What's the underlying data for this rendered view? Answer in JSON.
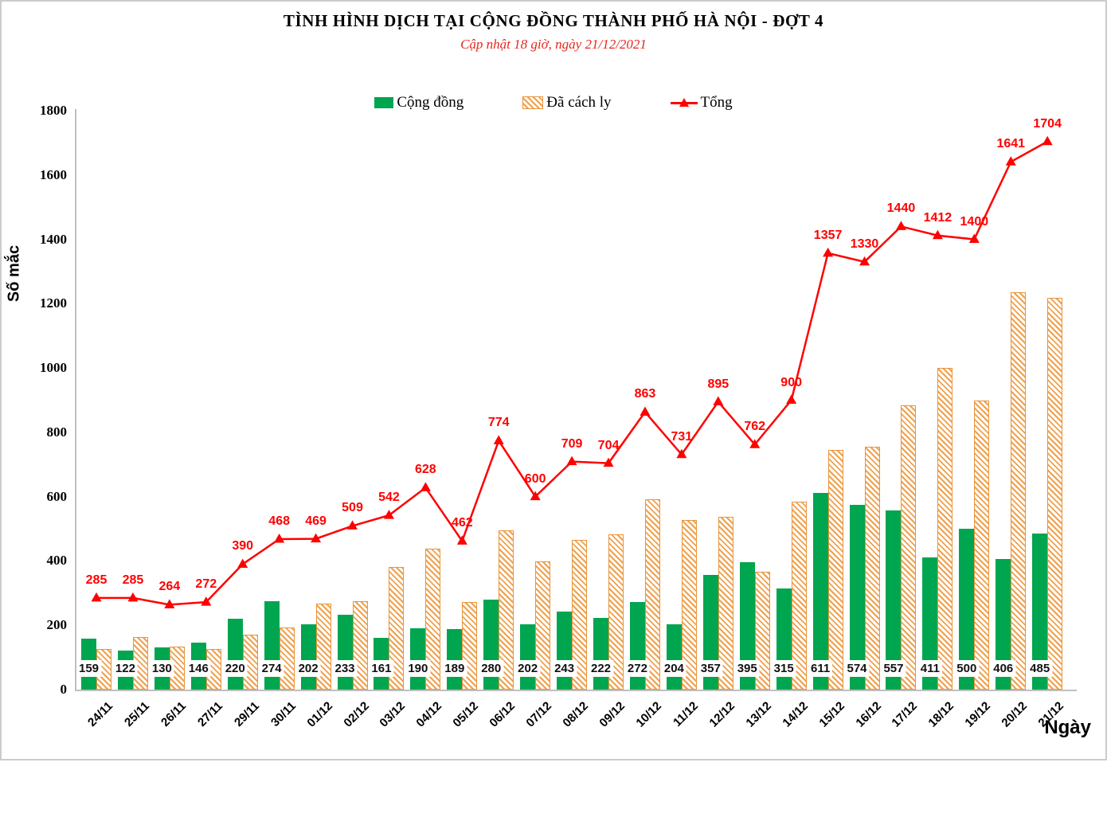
{
  "chart_data": {
    "type": "bar",
    "title": "TÌNH HÌNH DỊCH TẠI CỘNG ĐỒNG THÀNH PHỐ HÀ NỘI - ĐỢT 4",
    "subtitle": "Cập nhật 18 giờ, ngày 21/12/2021",
    "xlabel": "Ngày",
    "ylabel": "Số mắc",
    "ylim": [
      0,
      1800
    ],
    "ytick_step": 200,
    "grid": false,
    "legend_position": "top-center",
    "categories": [
      "24/11",
      "25/11",
      "26/11",
      "27/11",
      "29/11",
      "30/11",
      "01/12",
      "02/12",
      "03/12",
      "04/12",
      "05/12",
      "06/12",
      "07/12",
      "08/12",
      "09/12",
      "10/12",
      "11/12",
      "12/12",
      "13/12",
      "14/12",
      "15/12",
      "16/12",
      "17/12",
      "18/12",
      "19/12",
      "20/12",
      "21/12"
    ],
    "series": [
      {
        "name": "Cộng đồng",
        "type": "bar",
        "style": "solid",
        "color": "#00A550",
        "labels_shown": true,
        "values": [
          159,
          122,
          130,
          146,
          220,
          274,
          202,
          233,
          161,
          190,
          189,
          280,
          202,
          243,
          222,
          272,
          204,
          357,
          395,
          315,
          611,
          574,
          557,
          411,
          500,
          406,
          485
        ]
      },
      {
        "name": "Đã cách ly",
        "type": "bar",
        "style": "hatched",
        "color": "#ED9C3F",
        "labels_shown": false,
        "values": [
          126,
          163,
          134,
          126,
          170,
          194,
          267,
          276,
          381,
          438,
          273,
          494,
          398,
          466,
          482,
          591,
          527,
          538,
          367,
          585,
          746,
          756,
          883,
          1001,
          900,
          1235,
          1219
        ]
      },
      {
        "name": "Tổng",
        "type": "line",
        "marker": "triangle",
        "color": "#FF0000",
        "labels_shown": true,
        "values": [
          285,
          285,
          264,
          272,
          390,
          468,
          469,
          509,
          542,
          628,
          462,
          774,
          600,
          709,
          704,
          863,
          731,
          895,
          762,
          900,
          1357,
          1330,
          1440,
          1412,
          1400,
          1641,
          1704
        ]
      }
    ],
    "colors": {
      "axis": "#BFBFBF",
      "bar_label_text": "#111111",
      "subtitle": "#E8261D",
      "line_label": "#FF0000"
    }
  }
}
